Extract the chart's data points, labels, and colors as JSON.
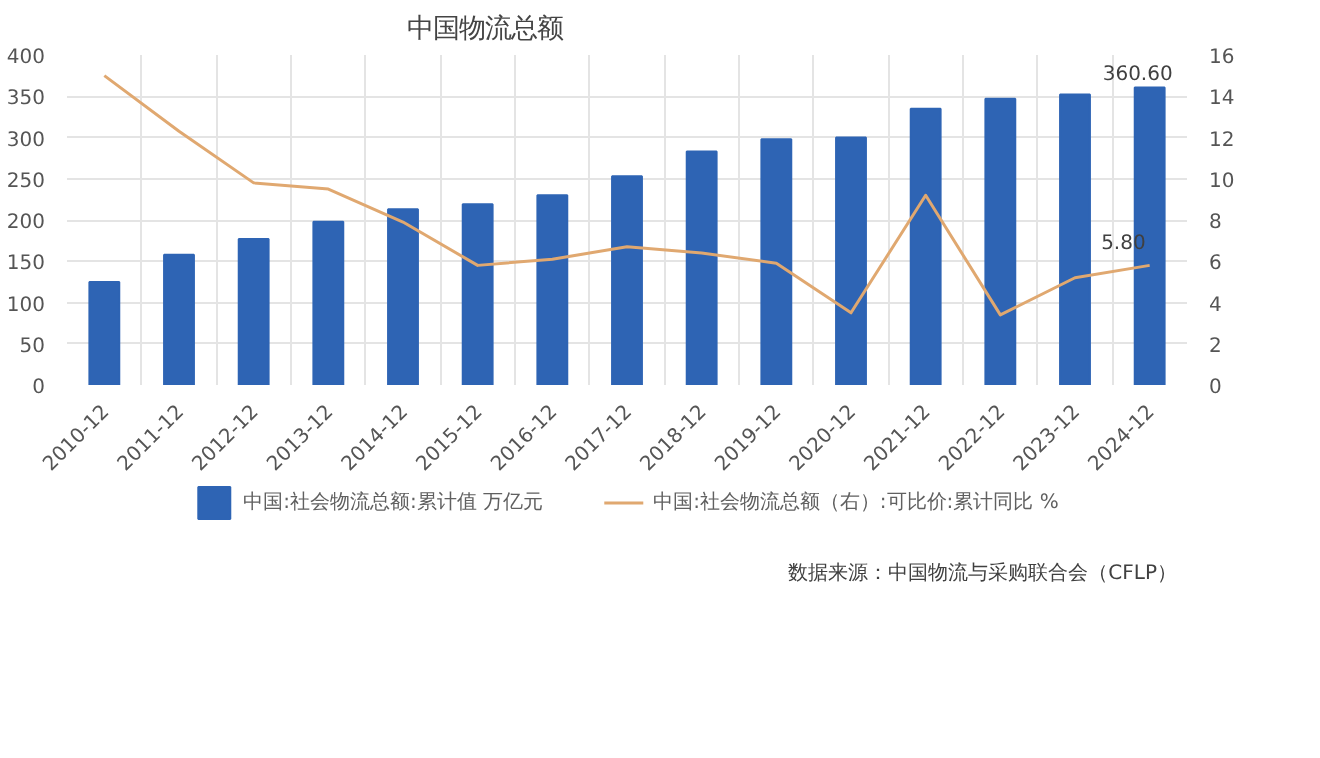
{
  "chart_data": {
    "type": "bar",
    "title": "中国物流总额",
    "categories": [
      "2010-12",
      "2011-12",
      "2012-12",
      "2013-12",
      "2014-12",
      "2015-12",
      "2016-12",
      "2017-12",
      "2018-12",
      "2019-12",
      "2020-12",
      "2021-12",
      "2022-12",
      "2023-12",
      "2024-12"
    ],
    "series": [
      {
        "name": "中国:社会物流总额:累计值 万亿元",
        "color": "#2e64b4",
        "values": [
          125,
          158,
          177,
          198,
          213,
          219,
          230,
          253,
          283,
          298,
          300,
          335,
          347,
          352,
          360.6
        ],
        "value_labels": [
          null,
          null,
          null,
          null,
          null,
          null,
          null,
          null,
          null,
          null,
          null,
          null,
          null,
          null,
          "360.60"
        ]
      },
      {
        "name": "中国:社会物流总额（右）:可比价:累计同比 %",
        "type": "line",
        "axis": "y2",
        "color": "#e0a870",
        "values": [
          15.0,
          12.3,
          9.8,
          9.5,
          7.9,
          5.8,
          6.1,
          6.7,
          6.4,
          5.9,
          3.5,
          9.2,
          3.4,
          5.2,
          5.8
        ],
        "value_labels": [
          null,
          null,
          null,
          null,
          null,
          null,
          null,
          null,
          null,
          null,
          null,
          null,
          null,
          null,
          "5.80"
        ]
      }
    ],
    "ylim": [
      0,
      400
    ],
    "yticks": [
      0,
      50,
      100,
      150,
      200,
      250,
      300,
      350,
      400
    ],
    "y2lim": [
      0,
      16
    ],
    "y2ticks": [
      0,
      2,
      4,
      6,
      8,
      10,
      12,
      14,
      16
    ],
    "grid": true,
    "legend": "bottom",
    "line_style": "solid",
    "annotations": [
      "数据来源：中国物流与采购联合会（CFLP）"
    ]
  }
}
